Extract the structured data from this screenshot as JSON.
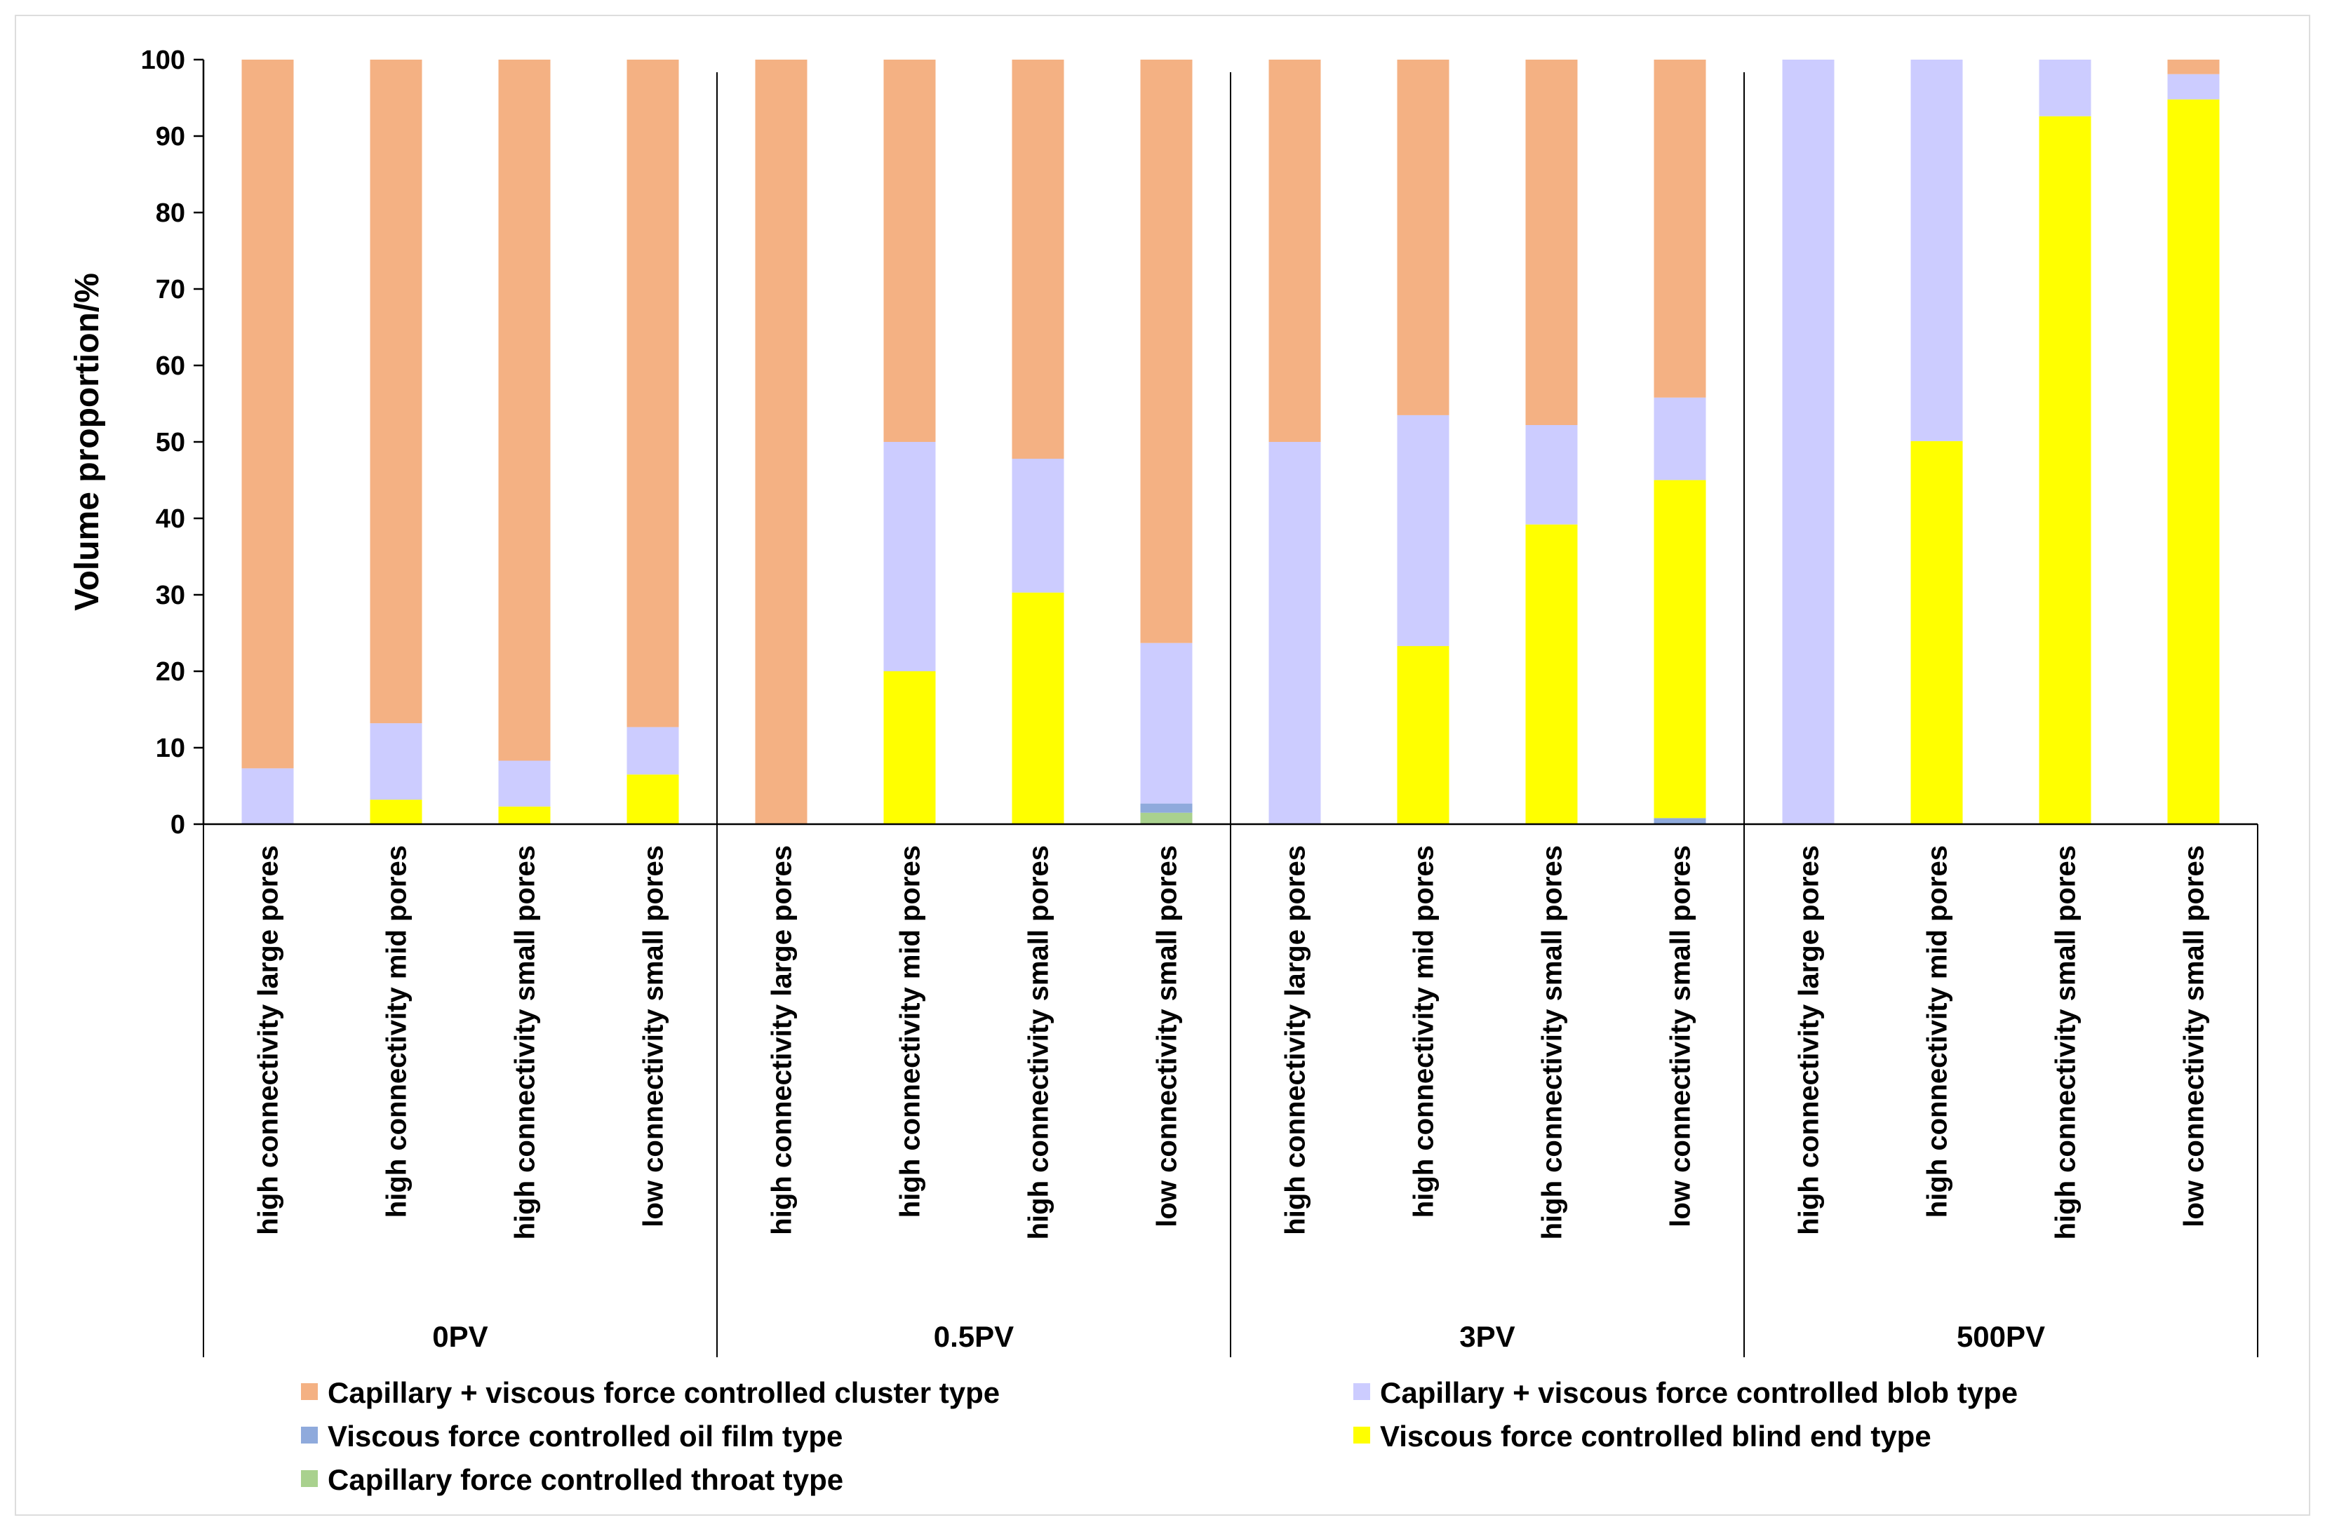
{
  "chart_data": {
    "type": "bar",
    "stacked": true,
    "ylabel": "Volume proportion/%",
    "ylim": [
      0,
      100
    ],
    "yticks": [
      0,
      10,
      20,
      30,
      40,
      50,
      60,
      70,
      80,
      90,
      100
    ],
    "grid": false,
    "legend_position": "bottom",
    "groups": [
      {
        "label": "0PV",
        "categories": [
          "high connectivity large pores",
          "high connectivity mid pores",
          "high connectivity small pores",
          "low connectivity small pores"
        ]
      },
      {
        "label": "0.5PV",
        "categories": [
          "high connectivity large pores",
          "high connectivity mid pores",
          "high connectivity small pores",
          "low connectivity small pores"
        ]
      },
      {
        "label": "3PV",
        "categories": [
          "high connectivity large pores",
          "high connectivity mid pores",
          "high connectivity small pores",
          "low connectivity small pores"
        ]
      },
      {
        "label": "500PV",
        "categories": [
          "high connectivity large pores",
          "high connectivity mid pores",
          "high connectivity small pores",
          "low connectivity small pores"
        ]
      }
    ],
    "series": [
      {
        "name": "Capillary force controlled throat type",
        "color": "#a9d18e",
        "values": [
          0,
          0,
          0,
          0,
          0,
          0,
          0,
          1.5,
          0,
          0,
          0,
          0,
          0,
          0,
          0,
          0
        ]
      },
      {
        "name": "Viscous force controlled oil film type",
        "color": "#8faadc",
        "values": [
          0,
          0,
          0,
          0,
          0,
          0,
          0,
          1.2,
          0,
          0,
          0,
          0.8,
          0,
          0,
          0,
          0
        ]
      },
      {
        "name": "Viscous force controlled blind end type",
        "color": "#ffff00",
        "values": [
          0,
          3.2,
          2.3,
          6.5,
          0,
          20,
          30.3,
          0,
          0,
          23.3,
          39.2,
          44.2,
          0,
          50.1,
          92.6,
          94.8
        ]
      },
      {
        "name": "Capillary + viscous force controlled blob type",
        "color": "#ccccff",
        "values": [
          7.3,
          10.0,
          6.0,
          6.2,
          0,
          30.0,
          17.5,
          21.0,
          50.0,
          30.2,
          13.0,
          10.8,
          100,
          49.9,
          7.4,
          3.3
        ]
      },
      {
        "name": "Capillary + viscous force controlled cluster type",
        "color": "#f4b183",
        "values": [
          92.7,
          86.8,
          91.7,
          87.3,
          100,
          50.0,
          52.2,
          76.3,
          50.0,
          46.5,
          47.8,
          44.2,
          0,
          0,
          0,
          1.9
        ]
      }
    ],
    "legend_order": [
      "Capillary + viscous force controlled cluster type",
      "Capillary + viscous force controlled blob type",
      "Viscous force controlled oil film type",
      "Viscous force controlled blind end type",
      "Capillary force controlled throat type"
    ]
  }
}
